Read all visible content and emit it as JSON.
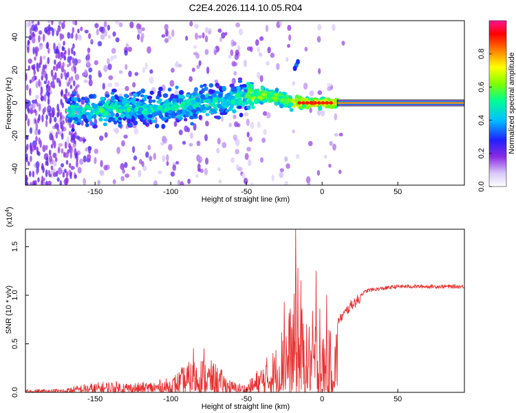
{
  "title": "C2E4.2026.114.10.05.R04",
  "chart_data": [
    {
      "type": "heatmap",
      "name": "spectrogram",
      "xlabel": "Height of straight line (km)",
      "ylabel": "Frequency (Hz)",
      "xlim": [
        -196,
        94
      ],
      "ylim": [
        -50,
        50
      ],
      "x_ticks": [
        -150,
        -100,
        -50,
        0,
        50
      ],
      "y_ticks": [
        -40,
        -20,
        0,
        20,
        40
      ],
      "x_tick_labels": [
        "-150",
        "-100",
        "-50",
        "0",
        "50"
      ],
      "y_tick_labels": [
        "-40",
        "-20",
        "0",
        "20",
        "40"
      ],
      "carrier_segment": {
        "x_start": 10,
        "x_end": 94,
        "frequency": 0,
        "amplitude": 1.0
      },
      "trend": {
        "frequency_at": [
          [
            -165,
            -5
          ],
          [
            -100,
            -3
          ],
          [
            -50,
            4
          ],
          [
            -30,
            4
          ],
          [
            -20,
            0
          ],
          [
            0,
            0
          ]
        ]
      },
      "side_blob": {
        "x": -17,
        "frequency": 23
      }
    },
    {
      "type": "colorbar",
      "label": "Normalized spectral amplitude",
      "range": [
        0.0,
        1.0
      ],
      "ticks": [
        0.0,
        0.2,
        0.4,
        0.6,
        0.8
      ],
      "tick_labels": [
        "0.0",
        "0.2",
        "0.4",
        "0.6",
        "0.8"
      ]
    },
    {
      "type": "line",
      "name": "snr",
      "xlabel": "Height of straight line (km)",
      "ylabel": "SNR (10 * v/v)",
      "multiplier": "(x10",
      "multiplier_exp": "4",
      "multiplier_close": ")",
      "xlim": [
        -196,
        94
      ],
      "ylim": [
        0,
        1.68
      ],
      "x_ticks": [
        -150,
        -100,
        -50,
        0,
        50
      ],
      "y_ticks": [
        0.0,
        0.5,
        1.0,
        1.5
      ],
      "x_tick_labels": [
        "-150",
        "-100",
        "-50",
        "0",
        "50"
      ],
      "y_tick_labels": [
        "0.0",
        "0.5",
        "1.0",
        "1.5"
      ],
      "color": "#e83030",
      "envelope": [
        [
          -196,
          0.03
        ],
        [
          -170,
          0.04
        ],
        [
          -160,
          0.08
        ],
        [
          -140,
          0.12
        ],
        [
          -120,
          0.1
        ],
        [
          -100,
          0.15
        ],
        [
          -90,
          0.3
        ],
        [
          -80,
          0.38
        ],
        [
          -70,
          0.3
        ],
        [
          -60,
          0.12
        ],
        [
          -50,
          0.08
        ],
        [
          -40,
          0.3
        ],
        [
          -30,
          0.5
        ],
        [
          -25,
          0.8
        ],
        [
          -20,
          0.9
        ],
        [
          -17,
          1.15
        ],
        [
          -10,
          0.7
        ],
        [
          -5,
          0.9
        ],
        [
          0,
          0.6
        ],
        [
          5,
          0.65
        ],
        [
          10,
          0.75
        ],
        [
          20,
          0.95
        ],
        [
          30,
          1.05
        ],
        [
          50,
          1.09
        ],
        [
          94,
          1.09
        ]
      ],
      "spikes": [
        [
          -17.5,
          1.68
        ],
        [
          -16,
          1.28
        ],
        [
          -14,
          1.15
        ],
        [
          -25,
          0.93
        ],
        [
          -4,
          1.25
        ],
        [
          -1.5,
          0.86
        ],
        [
          3,
          1.0
        ],
        [
          -26,
          0.53
        ],
        [
          -21,
          0.86
        ],
        [
          4,
          0.0
        ],
        [
          -78,
          0.45
        ],
        [
          -85,
          0.45
        ]
      ]
    }
  ]
}
